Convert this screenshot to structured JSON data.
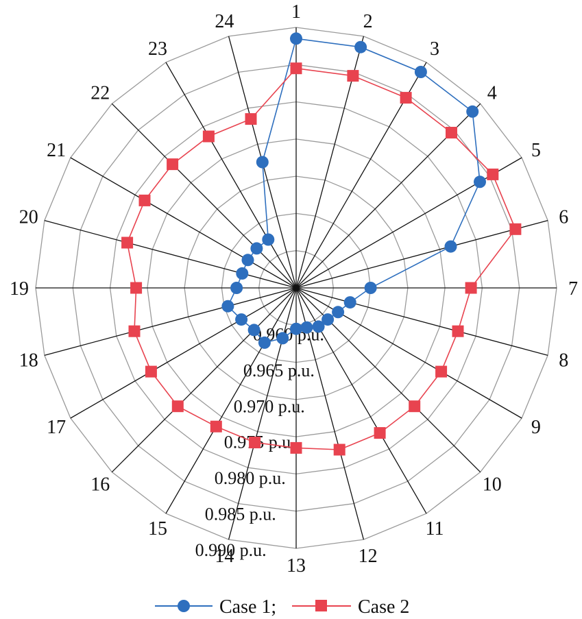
{
  "chart_data": {
    "type": "radar",
    "categories": [
      "1",
      "2",
      "3",
      "4",
      "5",
      "6",
      "7",
      "8",
      "9",
      "10",
      "11",
      "12",
      "13",
      "14",
      "15",
      "16",
      "17",
      "18",
      "19",
      "20",
      "21",
      "22",
      "23",
      "24"
    ],
    "radial_axis": {
      "min": 0.955,
      "max": 0.99,
      "ticks": [
        0.96,
        0.965,
        0.97,
        0.975,
        0.98,
        0.985,
        0.99
      ],
      "tick_labels": [
        "0.960 p.u.",
        "0.965 p.u.",
        "0.970 p.u.",
        "0.975 p.u.",
        "0.980 p.u.",
        "0.985 p.u.",
        "0.990 p.u."
      ]
    },
    "series": [
      {
        "name": "Case 1;",
        "color": "#2e6fbe",
        "marker": "circle",
        "values": [
          0.9885,
          0.9885,
          0.9885,
          0.9885,
          0.9835,
          0.9765,
          0.965,
          0.9625,
          0.9615,
          0.961,
          0.961,
          0.9605,
          0.9605,
          0.962,
          0.9635,
          0.963,
          0.9635,
          0.9645,
          0.963,
          0.9625,
          0.9625,
          0.9625,
          0.9625,
          0.9725
        ]
      },
      {
        "name": "Case 2",
        "color": "#e8434f",
        "marker": "square",
        "values": [
          0.9845,
          0.9845,
          0.9845,
          0.9845,
          0.9855,
          0.9855,
          0.9785,
          0.9775,
          0.9775,
          0.9775,
          0.9775,
          0.9775,
          0.9765,
          0.9765,
          0.9765,
          0.9775,
          0.9775,
          0.9775,
          0.9765,
          0.9785,
          0.9785,
          0.9785,
          0.9785,
          0.9785
        ]
      }
    ],
    "grid": true,
    "legend_position": "bottom-center"
  }
}
